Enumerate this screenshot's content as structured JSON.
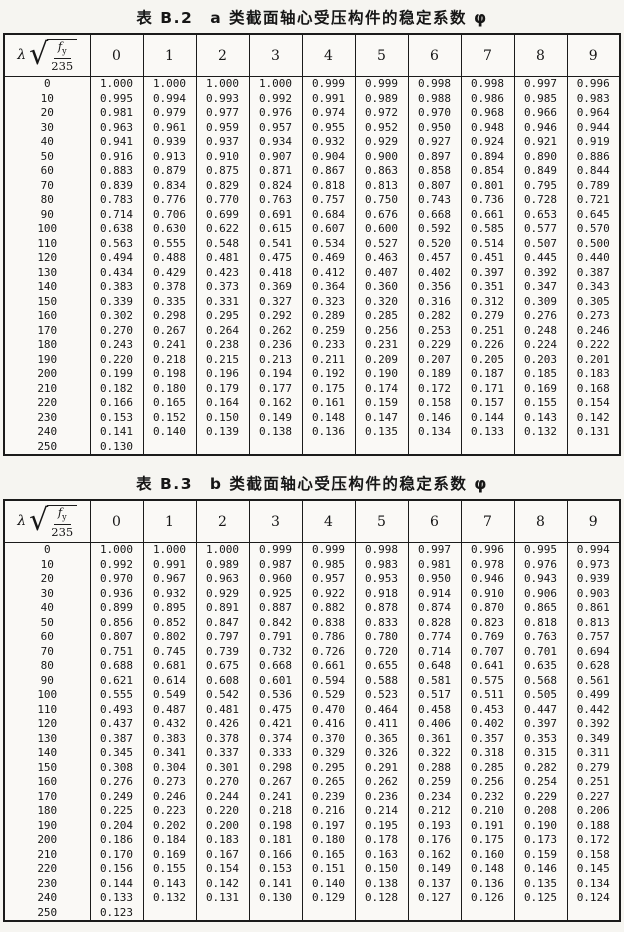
{
  "header_cell": {
    "lambda": "λ",
    "sqrt": "√",
    "numerator_base": "f",
    "numerator_sub": "y",
    "denominator": "235"
  },
  "tables": [
    {
      "title": "表 B.2",
      "subtitle": "a 类截面轴心受压构件的稳定系数 φ",
      "columns": [
        "0",
        "1",
        "2",
        "3",
        "4",
        "5",
        "6",
        "7",
        "8",
        "9"
      ],
      "rows": [
        {
          "l": "0",
          "v": [
            "1.000",
            "1.000",
            "1.000",
            "1.000",
            "0.999",
            "0.999",
            "0.998",
            "0.998",
            "0.997",
            "0.996"
          ]
        },
        {
          "l": "10",
          "v": [
            "0.995",
            "0.994",
            "0.993",
            "0.992",
            "0.991",
            "0.989",
            "0.988",
            "0.986",
            "0.985",
            "0.983"
          ]
        },
        {
          "l": "20",
          "v": [
            "0.981",
            "0.979",
            "0.977",
            "0.976",
            "0.974",
            "0.972",
            "0.970",
            "0.968",
            "0.966",
            "0.964"
          ]
        },
        {
          "l": "30",
          "v": [
            "0.963",
            "0.961",
            "0.959",
            "0.957",
            "0.955",
            "0.952",
            "0.950",
            "0.948",
            "0.946",
            "0.944"
          ]
        },
        {
          "l": "40",
          "v": [
            "0.941",
            "0.939",
            "0.937",
            "0.934",
            "0.932",
            "0.929",
            "0.927",
            "0.924",
            "0.921",
            "0.919"
          ]
        },
        {
          "l": "50",
          "v": [
            "0.916",
            "0.913",
            "0.910",
            "0.907",
            "0.904",
            "0.900",
            "0.897",
            "0.894",
            "0.890",
            "0.886"
          ]
        },
        {
          "l": "60",
          "v": [
            "0.883",
            "0.879",
            "0.875",
            "0.871",
            "0.867",
            "0.863",
            "0.858",
            "0.854",
            "0.849",
            "0.844"
          ]
        },
        {
          "l": "70",
          "v": [
            "0.839",
            "0.834",
            "0.829",
            "0.824",
            "0.818",
            "0.813",
            "0.807",
            "0.801",
            "0.795",
            "0.789"
          ]
        },
        {
          "l": "80",
          "v": [
            "0.783",
            "0.776",
            "0.770",
            "0.763",
            "0.757",
            "0.750",
            "0.743",
            "0.736",
            "0.728",
            "0.721"
          ]
        },
        {
          "l": "90",
          "v": [
            "0.714",
            "0.706",
            "0.699",
            "0.691",
            "0.684",
            "0.676",
            "0.668",
            "0.661",
            "0.653",
            "0.645"
          ]
        },
        {
          "l": "100",
          "v": [
            "0.638",
            "0.630",
            "0.622",
            "0.615",
            "0.607",
            "0.600",
            "0.592",
            "0.585",
            "0.577",
            "0.570"
          ]
        },
        {
          "l": "110",
          "v": [
            "0.563",
            "0.555",
            "0.548",
            "0.541",
            "0.534",
            "0.527",
            "0.520",
            "0.514",
            "0.507",
            "0.500"
          ]
        },
        {
          "l": "120",
          "v": [
            "0.494",
            "0.488",
            "0.481",
            "0.475",
            "0.469",
            "0.463",
            "0.457",
            "0.451",
            "0.445",
            "0.440"
          ]
        },
        {
          "l": "130",
          "v": [
            "0.434",
            "0.429",
            "0.423",
            "0.418",
            "0.412",
            "0.407",
            "0.402",
            "0.397",
            "0.392",
            "0.387"
          ]
        },
        {
          "l": "140",
          "v": [
            "0.383",
            "0.378",
            "0.373",
            "0.369",
            "0.364",
            "0.360",
            "0.356",
            "0.351",
            "0.347",
            "0.343"
          ]
        },
        {
          "l": "150",
          "v": [
            "0.339",
            "0.335",
            "0.331",
            "0.327",
            "0.323",
            "0.320",
            "0.316",
            "0.312",
            "0.309",
            "0.305"
          ]
        },
        {
          "l": "160",
          "v": [
            "0.302",
            "0.298",
            "0.295",
            "0.292",
            "0.289",
            "0.285",
            "0.282",
            "0.279",
            "0.276",
            "0.273"
          ]
        },
        {
          "l": "170",
          "v": [
            "0.270",
            "0.267",
            "0.264",
            "0.262",
            "0.259",
            "0.256",
            "0.253",
            "0.251",
            "0.248",
            "0.246"
          ]
        },
        {
          "l": "180",
          "v": [
            "0.243",
            "0.241",
            "0.238",
            "0.236",
            "0.233",
            "0.231",
            "0.229",
            "0.226",
            "0.224",
            "0.222"
          ]
        },
        {
          "l": "190",
          "v": [
            "0.220",
            "0.218",
            "0.215",
            "0.213",
            "0.211",
            "0.209",
            "0.207",
            "0.205",
            "0.203",
            "0.201"
          ]
        },
        {
          "l": "200",
          "v": [
            "0.199",
            "0.198",
            "0.196",
            "0.194",
            "0.192",
            "0.190",
            "0.189",
            "0.187",
            "0.185",
            "0.183"
          ]
        },
        {
          "l": "210",
          "v": [
            "0.182",
            "0.180",
            "0.179",
            "0.177",
            "0.175",
            "0.174",
            "0.172",
            "0.171",
            "0.169",
            "0.168"
          ]
        },
        {
          "l": "220",
          "v": [
            "0.166",
            "0.165",
            "0.164",
            "0.162",
            "0.161",
            "0.159",
            "0.158",
            "0.157",
            "0.155",
            "0.154"
          ]
        },
        {
          "l": "230",
          "v": [
            "0.153",
            "0.152",
            "0.150",
            "0.149",
            "0.148",
            "0.147",
            "0.146",
            "0.144",
            "0.143",
            "0.142"
          ]
        },
        {
          "l": "240",
          "v": [
            "0.141",
            "0.140",
            "0.139",
            "0.138",
            "0.136",
            "0.135",
            "0.134",
            "0.133",
            "0.132",
            "0.131"
          ]
        },
        {
          "l": "250",
          "v": [
            "0.130"
          ]
        }
      ]
    },
    {
      "title": "表 B.3",
      "subtitle": "b 类截面轴心受压构件的稳定系数 φ",
      "columns": [
        "0",
        "1",
        "2",
        "3",
        "4",
        "5",
        "6",
        "7",
        "8",
        "9"
      ],
      "rows": [
        {
          "l": "0",
          "v": [
            "1.000",
            "1.000",
            "1.000",
            "0.999",
            "0.999",
            "0.998",
            "0.997",
            "0.996",
            "0.995",
            "0.994"
          ]
        },
        {
          "l": "10",
          "v": [
            "0.992",
            "0.991",
            "0.989",
            "0.987",
            "0.985",
            "0.983",
            "0.981",
            "0.978",
            "0.976",
            "0.973"
          ]
        },
        {
          "l": "20",
          "v": [
            "0.970",
            "0.967",
            "0.963",
            "0.960",
            "0.957",
            "0.953",
            "0.950",
            "0.946",
            "0.943",
            "0.939"
          ]
        },
        {
          "l": "30",
          "v": [
            "0.936",
            "0.932",
            "0.929",
            "0.925",
            "0.922",
            "0.918",
            "0.914",
            "0.910",
            "0.906",
            "0.903"
          ]
        },
        {
          "l": "40",
          "v": [
            "0.899",
            "0.895",
            "0.891",
            "0.887",
            "0.882",
            "0.878",
            "0.874",
            "0.870",
            "0.865",
            "0.861"
          ]
        },
        {
          "l": "50",
          "v": [
            "0.856",
            "0.852",
            "0.847",
            "0.842",
            "0.838",
            "0.833",
            "0.828",
            "0.823",
            "0.818",
            "0.813"
          ]
        },
        {
          "l": "60",
          "v": [
            "0.807",
            "0.802",
            "0.797",
            "0.791",
            "0.786",
            "0.780",
            "0.774",
            "0.769",
            "0.763",
            "0.757"
          ]
        },
        {
          "l": "70",
          "v": [
            "0.751",
            "0.745",
            "0.739",
            "0.732",
            "0.726",
            "0.720",
            "0.714",
            "0.707",
            "0.701",
            "0.694"
          ]
        },
        {
          "l": "80",
          "v": [
            "0.688",
            "0.681",
            "0.675",
            "0.668",
            "0.661",
            "0.655",
            "0.648",
            "0.641",
            "0.635",
            "0.628"
          ]
        },
        {
          "l": "90",
          "v": [
            "0.621",
            "0.614",
            "0.608",
            "0.601",
            "0.594",
            "0.588",
            "0.581",
            "0.575",
            "0.568",
            "0.561"
          ]
        },
        {
          "l": "100",
          "v": [
            "0.555",
            "0.549",
            "0.542",
            "0.536",
            "0.529",
            "0.523",
            "0.517",
            "0.511",
            "0.505",
            "0.499"
          ]
        },
        {
          "l": "110",
          "v": [
            "0.493",
            "0.487",
            "0.481",
            "0.475",
            "0.470",
            "0.464",
            "0.458",
            "0.453",
            "0.447",
            "0.442"
          ]
        },
        {
          "l": "120",
          "v": [
            "0.437",
            "0.432",
            "0.426",
            "0.421",
            "0.416",
            "0.411",
            "0.406",
            "0.402",
            "0.397",
            "0.392"
          ]
        },
        {
          "l": "130",
          "v": [
            "0.387",
            "0.383",
            "0.378",
            "0.374",
            "0.370",
            "0.365",
            "0.361",
            "0.357",
            "0.353",
            "0.349"
          ]
        },
        {
          "l": "140",
          "v": [
            "0.345",
            "0.341",
            "0.337",
            "0.333",
            "0.329",
            "0.326",
            "0.322",
            "0.318",
            "0.315",
            "0.311"
          ]
        },
        {
          "l": "150",
          "v": [
            "0.308",
            "0.304",
            "0.301",
            "0.298",
            "0.295",
            "0.291",
            "0.288",
            "0.285",
            "0.282",
            "0.279"
          ]
        },
        {
          "l": "160",
          "v": [
            "0.276",
            "0.273",
            "0.270",
            "0.267",
            "0.265",
            "0.262",
            "0.259",
            "0.256",
            "0.254",
            "0.251"
          ]
        },
        {
          "l": "170",
          "v": [
            "0.249",
            "0.246",
            "0.244",
            "0.241",
            "0.239",
            "0.236",
            "0.234",
            "0.232",
            "0.229",
            "0.227"
          ]
        },
        {
          "l": "180",
          "v": [
            "0.225",
            "0.223",
            "0.220",
            "0.218",
            "0.216",
            "0.214",
            "0.212",
            "0.210",
            "0.208",
            "0.206"
          ]
        },
        {
          "l": "190",
          "v": [
            "0.204",
            "0.202",
            "0.200",
            "0.198",
            "0.197",
            "0.195",
            "0.193",
            "0.191",
            "0.190",
            "0.188"
          ]
        },
        {
          "l": "200",
          "v": [
            "0.186",
            "0.184",
            "0.183",
            "0.181",
            "0.180",
            "0.178",
            "0.176",
            "0.175",
            "0.173",
            "0.172"
          ]
        },
        {
          "l": "210",
          "v": [
            "0.170",
            "0.169",
            "0.167",
            "0.166",
            "0.165",
            "0.163",
            "0.162",
            "0.160",
            "0.159",
            "0.158"
          ]
        },
        {
          "l": "220",
          "v": [
            "0.156",
            "0.155",
            "0.154",
            "0.153",
            "0.151",
            "0.150",
            "0.149",
            "0.148",
            "0.146",
            "0.145"
          ]
        },
        {
          "l": "230",
          "v": [
            "0.144",
            "0.143",
            "0.142",
            "0.141",
            "0.140",
            "0.138",
            "0.137",
            "0.136",
            "0.135",
            "0.134"
          ]
        },
        {
          "l": "240",
          "v": [
            "0.133",
            "0.132",
            "0.131",
            "0.130",
            "0.129",
            "0.128",
            "0.127",
            "0.126",
            "0.125",
            "0.124"
          ]
        },
        {
          "l": "250",
          "v": [
            "0.123"
          ]
        }
      ]
    }
  ]
}
